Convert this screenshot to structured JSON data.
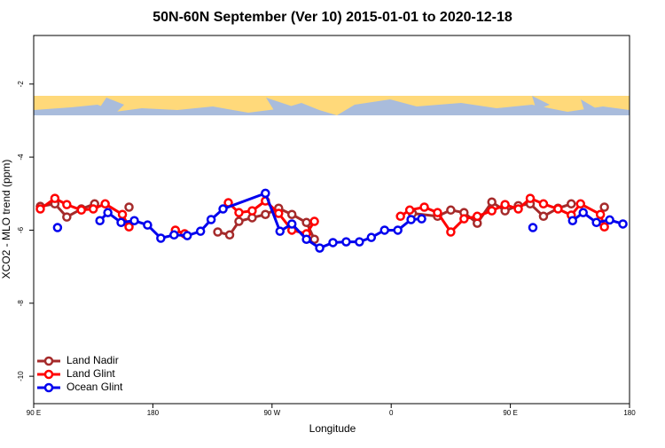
{
  "chart_data": {
    "type": "line",
    "title": "50N-60N September (Ver 10)   2015-01-01 to 2020-12-18",
    "x_label": "Longitude",
    "y_label": "XCO2 - MLO trend (ppm)",
    "xlim": [
      90,
      540
    ],
    "ylim": [
      -10.75,
      -0.67
    ],
    "xticks": [
      {
        "value": 90,
        "label": "90 E"
      },
      180,
      {
        "value": 270,
        "label": "90 W"
      },
      {
        "value": 360,
        "label": "0"
      },
      {
        "value": 450,
        "label": "90 E"
      },
      {
        "value": 540,
        "label": "180"
      }
    ],
    "yticks": [
      -10,
      -8,
      -6,
      -4,
      -2
    ],
    "legend": "bottom-left",
    "series": [
      {
        "name": "Land Nadir",
        "color": "#a52a2a",
        "x": [
          95,
          106,
          115,
          126,
          136,
          null,
          162,
          null,
          229,
          238,
          245,
          255,
          265,
          275,
          285,
          296,
          302,
          null,
          376,
          395,
          405,
          415,
          425,
          436,
          446,
          456,
          465,
          475,
          486,
          496,
          null,
          521
        ],
        "values": [
          -5.35,
          -5.28,
          -5.64,
          -5.42,
          -5.28,
          null,
          -5.37,
          null,
          -6.05,
          -6.13,
          -5.76,
          -5.66,
          -5.57,
          -5.4,
          -5.57,
          -5.79,
          -6.25,
          null,
          -5.54,
          -5.62,
          -5.45,
          -5.52,
          -5.81,
          -5.23,
          -5.47,
          -5.33,
          -5.28,
          -5.62,
          -5.4,
          -5.28,
          null,
          -5.37
        ]
      },
      {
        "name": "Land Glint",
        "color": "#ff0000",
        "x": [
          95,
          106,
          115,
          126,
          135,
          144,
          157,
          162,
          null,
          197,
          204,
          null,
          237,
          245,
          255,
          265,
          275,
          285,
          296,
          302,
          null,
          367,
          374,
          385,
          395,
          405,
          415,
          425,
          436,
          446,
          456,
          465,
          475,
          486,
          496,
          503,
          518,
          521
        ],
        "values": [
          -5.42,
          -5.13,
          -5.3,
          -5.45,
          -5.42,
          -5.28,
          -5.57,
          -5.91,
          null,
          -6.0,
          -6.1,
          null,
          -5.25,
          -5.52,
          -5.47,
          -5.2,
          -5.54,
          -6.0,
          -6.1,
          -5.76,
          null,
          -5.62,
          -5.45,
          -5.37,
          -5.52,
          -6.05,
          -5.69,
          -5.62,
          -5.47,
          -5.3,
          -5.42,
          -5.13,
          -5.28,
          -5.42,
          -5.59,
          -5.28,
          -5.57,
          -5.91
        ]
      },
      {
        "name": "Ocean Glint",
        "color": "#0000ee",
        "x": [
          108,
          null,
          140,
          146,
          156,
          166,
          176,
          186,
          196,
          206,
          216,
          224,
          233,
          265,
          276,
          285,
          296,
          306,
          316,
          326,
          336,
          345,
          355,
          365,
          375,
          383,
          null,
          467,
          null,
          497,
          505,
          515,
          525,
          535
        ],
        "values": [
          -5.93,
          null,
          -5.74,
          -5.52,
          -5.79,
          -5.74,
          -5.86,
          -6.22,
          -6.13,
          -6.15,
          -6.03,
          -5.71,
          -5.42,
          -4.99,
          -6.03,
          -5.83,
          -6.25,
          -6.49,
          -6.34,
          -6.32,
          -6.32,
          -6.2,
          -6.0,
          -6.0,
          -5.71,
          -5.69,
          null,
          -5.93,
          null,
          -5.74,
          -5.52,
          -5.79,
          -5.72,
          -5.83
        ]
      }
    ]
  }
}
